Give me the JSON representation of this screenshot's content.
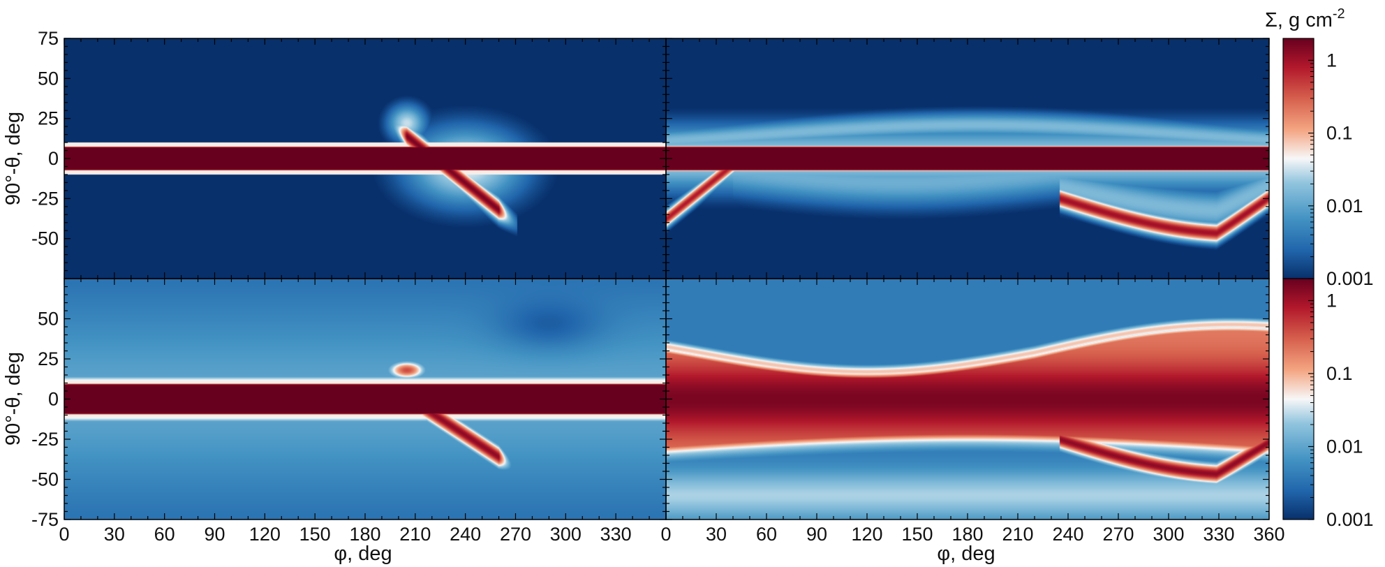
{
  "chart_data": [
    {
      "type": "heatmap",
      "panel": "top-left",
      "ylabel": "90°-θ, deg",
      "xlabel": "",
      "xlim": [
        0,
        360
      ],
      "ylim": [
        -75,
        75
      ],
      "x_ticks": [],
      "y_ticks": [
        75,
        50,
        25,
        0,
        -25,
        -50
      ],
      "features": [
        {
          "kind": "band",
          "lat_min": -8,
          "lat_max": 8,
          "phi_min": 0,
          "phi_max": 360,
          "log_sigma": 0.3
        },
        {
          "kind": "arm",
          "phi_start": 205,
          "lat_start": 12,
          "phi_end": 255,
          "lat_end": -32,
          "log_sigma": 0.1
        },
        {
          "kind": "halo",
          "phi_center": 245,
          "lat_center": -10,
          "log_sigma": -1.5
        }
      ]
    },
    {
      "type": "heatmap",
      "panel": "top-right",
      "ylabel": "",
      "xlabel": "",
      "xlim": [
        0,
        360
      ],
      "ylim": [
        -75,
        75
      ],
      "x_ticks": [],
      "y_ticks": [],
      "features": [
        {
          "kind": "band",
          "lat_min": -8,
          "lat_max": 8,
          "phi_min": 0,
          "phi_max": 360,
          "log_sigma": 0.3
        },
        {
          "kind": "arc",
          "phi_start": 250,
          "phi_end": 360,
          "lat_min": -45,
          "log_sigma": 0.1
        },
        {
          "kind": "arm",
          "phi_start": 0,
          "lat_start": -38,
          "phi_end": 35,
          "lat_end": -8,
          "log_sigma": 0.0
        }
      ]
    },
    {
      "type": "heatmap",
      "panel": "bottom-left",
      "ylabel": "90°-θ, deg",
      "xlabel": "φ, deg",
      "xlim": [
        0,
        360
      ],
      "ylim": [
        -75,
        75
      ],
      "x_ticks": [
        0,
        30,
        60,
        90,
        120,
        150,
        180,
        210,
        240,
        270,
        300,
        330
      ],
      "y_ticks": [
        50,
        25,
        0,
        -25,
        -50,
        -75
      ],
      "features": [
        {
          "kind": "band",
          "lat_min": -10,
          "lat_max": 10,
          "phi_min": 0,
          "phi_max": 360,
          "log_sigma": 0.3
        },
        {
          "kind": "arm",
          "phi_start": 215,
          "lat_start": -5,
          "phi_end": 255,
          "lat_end": -35,
          "log_sigma": 0.1
        }
      ]
    },
    {
      "type": "heatmap",
      "panel": "bottom-right",
      "ylabel": "",
      "xlabel": "φ, deg",
      "xlim": [
        0,
        360
      ],
      "ylim": [
        -75,
        75
      ],
      "x_ticks": [
        0,
        30,
        60,
        90,
        120,
        150,
        180,
        210,
        240,
        270,
        300,
        330,
        360
      ],
      "y_ticks": [],
      "features": [
        {
          "kind": "thick-band",
          "lat_min": -35,
          "lat_max": 35,
          "phi_min": 0,
          "phi_max": 360,
          "log_sigma": -0.3
        },
        {
          "kind": "arc",
          "phi_start": 240,
          "phi_end": 360,
          "lat_min": -48,
          "log_sigma": 0.1
        }
      ]
    }
  ],
  "colorbars": [
    {
      "title": "Σ, g cm",
      "title_superscript": "-2",
      "ticks": [
        "1",
        "0.1",
        "0.01",
        "0.001"
      ]
    },
    {
      "title": "",
      "title_superscript": "",
      "ticks": [
        "1",
        "0.1",
        "0.01",
        "0.001"
      ]
    }
  ],
  "colormap": {
    "name": "RdBu_r",
    "stops": [
      "#08306b",
      "#2166ac",
      "#4393c3",
      "#92c5de",
      "#f7f7f7",
      "#f4a582",
      "#d6604d",
      "#b2182b",
      "#67001f"
    ]
  },
  "colorscale": {
    "type": "log",
    "min": 0.001,
    "max": 2
  }
}
